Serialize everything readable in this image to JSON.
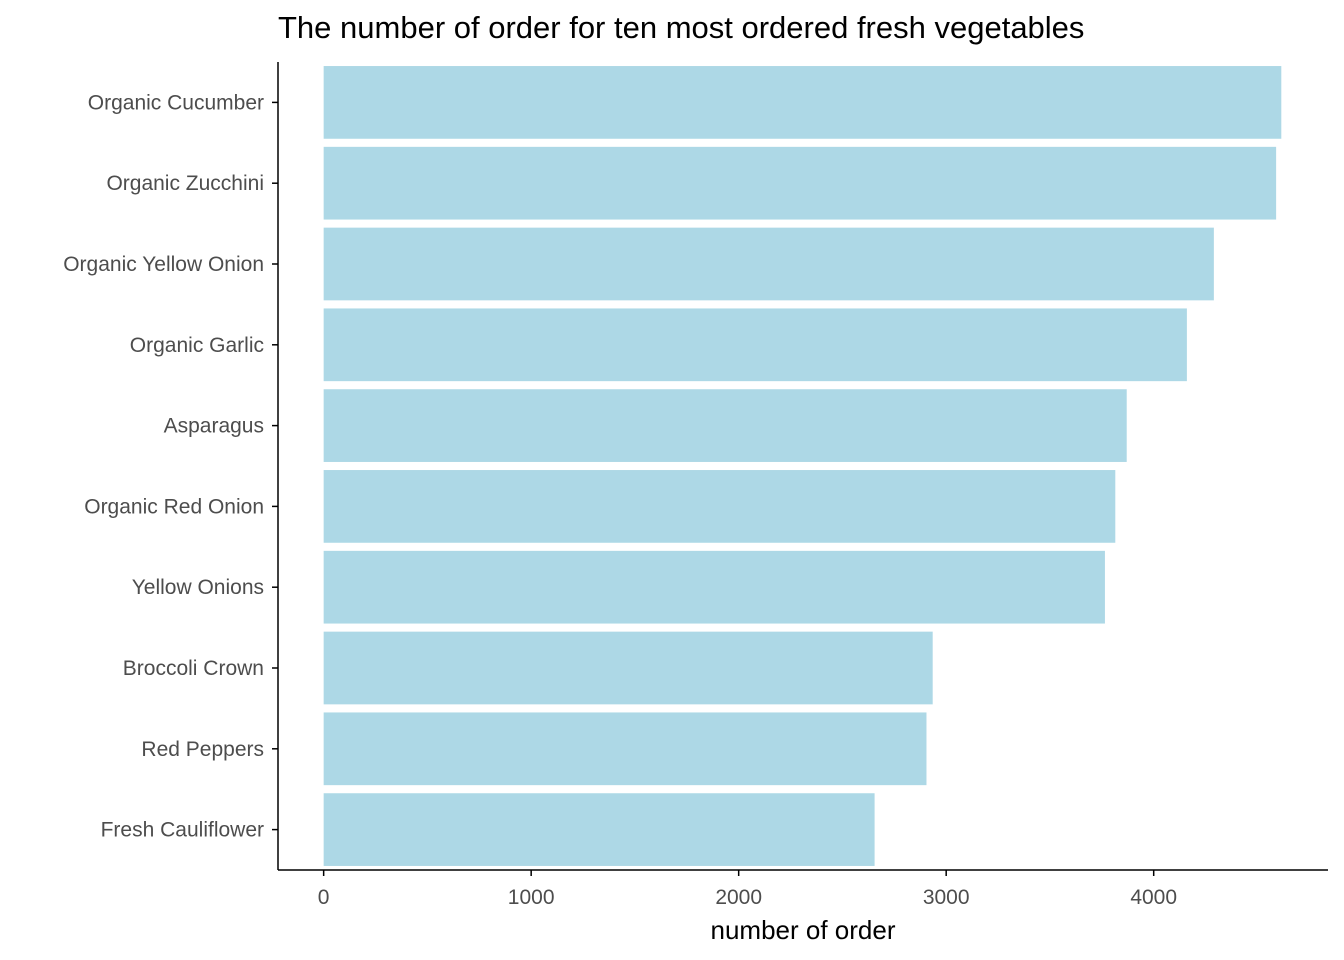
{
  "chart_data": {
    "type": "bar",
    "orientation": "horizontal",
    "title": "The number of order for ten most ordered fresh vegetables",
    "xlabel": "number of order",
    "ylabel": "",
    "categories": [
      "Organic Cucumber",
      "Organic Zucchini",
      "Organic Yellow Onion",
      "Organic Garlic",
      "Asparagus",
      "Organic Red Onion",
      "Yellow Onions",
      "Broccoli Crown",
      "Red Peppers",
      "Fresh Cauliflower"
    ],
    "values": [
      4615,
      4590,
      4290,
      4160,
      3870,
      3815,
      3765,
      2935,
      2905,
      2655
    ],
    "xlim": [
      -220,
      4840
    ],
    "xticks": [
      0,
      1000,
      2000,
      3000,
      4000
    ],
    "xtick_labels": [
      "0",
      "1000",
      "2000",
      "3000",
      "4000"
    ],
    "grid": false,
    "legend": "none",
    "bar_color": "#add8e6"
  }
}
